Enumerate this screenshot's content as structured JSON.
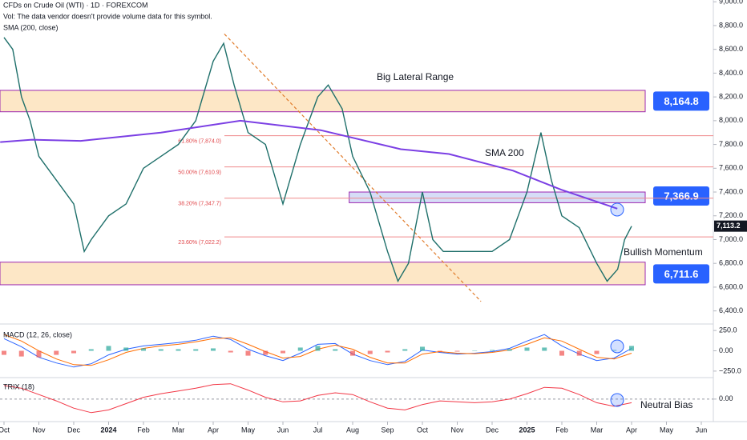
{
  "chart_data": [
    {
      "type": "line",
      "title": "CFDs on Crude Oil (WTI) · 1D · FOREXCOM",
      "subtitle": "Vol: The data vendor doesn't provide volume data for this symbol.",
      "xlim": [
        -0.115,
        20.345
      ],
      "xticks": [
        {
          "value": 0,
          "label": "Oct"
        },
        {
          "value": 1,
          "label": "Nov"
        },
        {
          "value": 2,
          "label": "Dec"
        },
        {
          "value": 3,
          "label": "2024"
        },
        {
          "value": 4,
          "label": "Feb"
        },
        {
          "value": 5,
          "label": "Mar"
        },
        {
          "value": 6,
          "label": "Apr"
        },
        {
          "value": 7,
          "label": "May"
        },
        {
          "value": 8,
          "label": "Jun"
        },
        {
          "value": 9,
          "label": "Jul"
        },
        {
          "value": 10,
          "label": "Aug"
        },
        {
          "value": 11,
          "label": "Sep"
        },
        {
          "value": 12,
          "label": "Oct"
        },
        {
          "value": 13,
          "label": "Nov"
        },
        {
          "value": 14,
          "label": "Dec"
        },
        {
          "value": 15,
          "label": "2025"
        },
        {
          "value": 16,
          "label": "Feb"
        },
        {
          "value": 17,
          "label": "Mar"
        },
        {
          "value": 18,
          "label": "Apr"
        },
        {
          "value": 19,
          "label": "May"
        },
        {
          "value": 20,
          "label": "Jun"
        }
      ],
      "ylim": [
        6290,
        9015
      ],
      "yticks": [
        {
          "value": 6400,
          "label": "6,400.0"
        },
        {
          "value": 6600,
          "label": "6,600.0"
        },
        {
          "value": 6800,
          "label": "6,800.0"
        },
        {
          "value": 7000,
          "label": "7,000.0"
        },
        {
          "value": 7200,
          "label": "7,200.0"
        },
        {
          "value": 7400,
          "label": "7,400.0"
        },
        {
          "value": 7600,
          "label": "7,600.0"
        },
        {
          "value": 7800,
          "label": "7,800.0"
        },
        {
          "value": 8000,
          "label": "8,000.0"
        },
        {
          "value": 8200,
          "label": "8,200.0"
        },
        {
          "value": 8400,
          "label": "8,400.0"
        },
        {
          "value": 8600,
          "label": "8,600.0"
        },
        {
          "value": 8800,
          "label": "8,800.0"
        },
        {
          "value": 9000,
          "label": "9,000.0"
        }
      ],
      "grid": false,
      "series": [
        {
          "color": "#1e6f6a",
          "x": [
            0,
            0.25,
            0.5,
            0.75,
            1,
            1.5,
            2,
            2.3,
            2.5,
            3,
            3.5,
            4,
            4.5,
            5,
            5.5,
            6,
            6.3,
            6.6,
            7,
            7.5,
            8,
            8.5,
            9,
            9.3,
            9.7,
            10,
            10.5,
            11,
            11.3,
            11.6,
            12,
            12.3,
            12.6,
            13,
            13.5,
            14,
            14.5,
            15,
            15.4,
            15.7,
            16,
            16.5,
            17,
            17.3,
            17.6,
            17.8,
            18
          ],
          "values": [
            8700,
            8600,
            8200,
            8000,
            7700,
            7500,
            7300,
            6900,
            7000,
            7200,
            7300,
            7600,
            7700,
            7800,
            8000,
            8500,
            8650,
            8300,
            7900,
            7800,
            7300,
            7800,
            8200,
            8300,
            8100,
            7700,
            7400,
            6900,
            6650,
            6800,
            7400,
            7000,
            6900,
            6900,
            6900,
            6900,
            7000,
            7400,
            7900,
            7500,
            7200,
            7100,
            6800,
            6650,
            6750,
            7000,
            7113
          ]
        },
        {
          "name": "SMA (200, close)",
          "color": "#7b3fe4",
          "x": [
            -0.11,
            0.8,
            2.2,
            4.5,
            6.78,
            9.08,
            11.38,
            12.76,
            14.6,
            15.98,
            17.59
          ],
          "values": [
            7820,
            7840,
            7830,
            7900,
            8000,
            7920,
            7760,
            7720,
            7580,
            7420,
            7260
          ]
        }
      ],
      "last_price": {
        "value": 7113.2,
        "label": "7,113.2"
      },
      "zones": [
        {
          "value": 8164.8,
          "label": "8,164.8",
          "band": [
            8075,
            8255
          ],
          "x_from": -0.115,
          "color": "#fde7c6"
        },
        {
          "value": 7366.9,
          "label": "7,366.9",
          "band": [
            7310,
            7400
          ],
          "x_from": 9.9,
          "color": "#d6ddf7"
        },
        {
          "value": 6711.6,
          "label": "6,711.6",
          "band": [
            6620,
            6810
          ],
          "x_from": -0.115,
          "color": "#fde7c6"
        }
      ],
      "fib_levels": [
        {
          "value": 7874.0,
          "label": "61.80% (7,874.0)"
        },
        {
          "value": 7610.9,
          "label": "50.00% (7,610.9)"
        },
        {
          "value": 7347.7,
          "label": "38.20% (7,347.7)"
        },
        {
          "value": 7022.2,
          "label": "23.60% (7,022.2)"
        }
      ],
      "trendline": {
        "x": [
          6.32,
          13.68
        ],
        "values": [
          8730,
          6480
        ]
      },
      "annotations": [
        "Big Lateral Range",
        "SMA 200",
        "Bullish Momentum"
      ]
    },
    {
      "type": "line",
      "title": "MACD (12, 26, close)",
      "ylim": [
        -330,
        330
      ],
      "yticks": [
        {
          "value": 250,
          "label": "250.0"
        },
        {
          "value": 0,
          "label": "0.00"
        },
        {
          "value": -250,
          "label": "−250.0"
        }
      ],
      "x": [
        0,
        0.5,
        1,
        1.5,
        2,
        2.5,
        3,
        3.5,
        4,
        4.5,
        5,
        5.5,
        6,
        6.5,
        7,
        7.5,
        8,
        8.5,
        9,
        9.5,
        10,
        10.5,
        11,
        11.5,
        12,
        12.5,
        13,
        13.5,
        14,
        14.5,
        15,
        15.5,
        16,
        16.5,
        17,
        17.5,
        18
      ],
      "series": [
        {
          "color": "#2962ff",
          "values": [
            150,
            50,
            -80,
            -150,
            -200,
            -160,
            -50,
            20,
            60,
            80,
            100,
            130,
            180,
            140,
            20,
            -60,
            -120,
            -30,
            80,
            90,
            -40,
            -120,
            -170,
            -130,
            10,
            -20,
            -40,
            -30,
            -10,
            30,
            120,
            200,
            60,
            -40,
            -120,
            -90,
            30
          ]
        },
        {
          "color": "#ff6d00",
          "values": [
            200,
            120,
            0,
            -100,
            -170,
            -180,
            -110,
            -20,
            30,
            60,
            80,
            110,
            150,
            160,
            80,
            -10,
            -90,
            -70,
            20,
            70,
            20,
            -80,
            -150,
            -150,
            -40,
            -10,
            -30,
            -35,
            -20,
            10,
            80,
            160,
            120,
            20,
            -80,
            -100,
            -30
          ]
        },
        {
          "type": "bar",
          "color": "#26a69a",
          "negative_color": "#ef5350",
          "values": [
            -50,
            -70,
            -80,
            -50,
            -30,
            20,
            60,
            40,
            30,
            20,
            20,
            20,
            30,
            -20,
            -60,
            -50,
            -30,
            40,
            60,
            20,
            -60,
            -40,
            -20,
            20,
            50,
            -10,
            -10,
            5,
            10,
            20,
            40,
            40,
            -60,
            -60,
            -40,
            10,
            60
          ]
        }
      ]
    },
    {
      "type": "line",
      "title": "TRIX (18)",
      "ylim": [
        -0.24,
        0.22
      ],
      "yticks": [
        {
          "value": 0,
          "label": "0.00"
        }
      ],
      "x": [
        0,
        0.5,
        1,
        1.5,
        2,
        2.5,
        3,
        3.5,
        4,
        4.5,
        5,
        5.5,
        6,
        6.5,
        7,
        7.5,
        8,
        8.5,
        9,
        9.5,
        10,
        10.5,
        11,
        11.5,
        12,
        12.5,
        13,
        13.5,
        14,
        14.5,
        15,
        15.5,
        16,
        16.5,
        17,
        17.5,
        18
      ],
      "series": [
        {
          "color": "#f23645",
          "values": [
            0.15,
            0.12,
            0.05,
            -0.02,
            -0.1,
            -0.15,
            -0.12,
            -0.05,
            0.02,
            0.06,
            0.09,
            0.12,
            0.16,
            0.17,
            0.1,
            0.02,
            -0.03,
            -0.02,
            0.04,
            0.07,
            0.05,
            -0.03,
            -0.1,
            -0.12,
            -0.06,
            -0.02,
            -0.03,
            -0.04,
            -0.03,
            0.0,
            0.06,
            0.13,
            0.12,
            0.05,
            -0.04,
            -0.08,
            -0.04
          ]
        }
      ],
      "annotations": [
        "Neutral Bias"
      ]
    }
  ]
}
